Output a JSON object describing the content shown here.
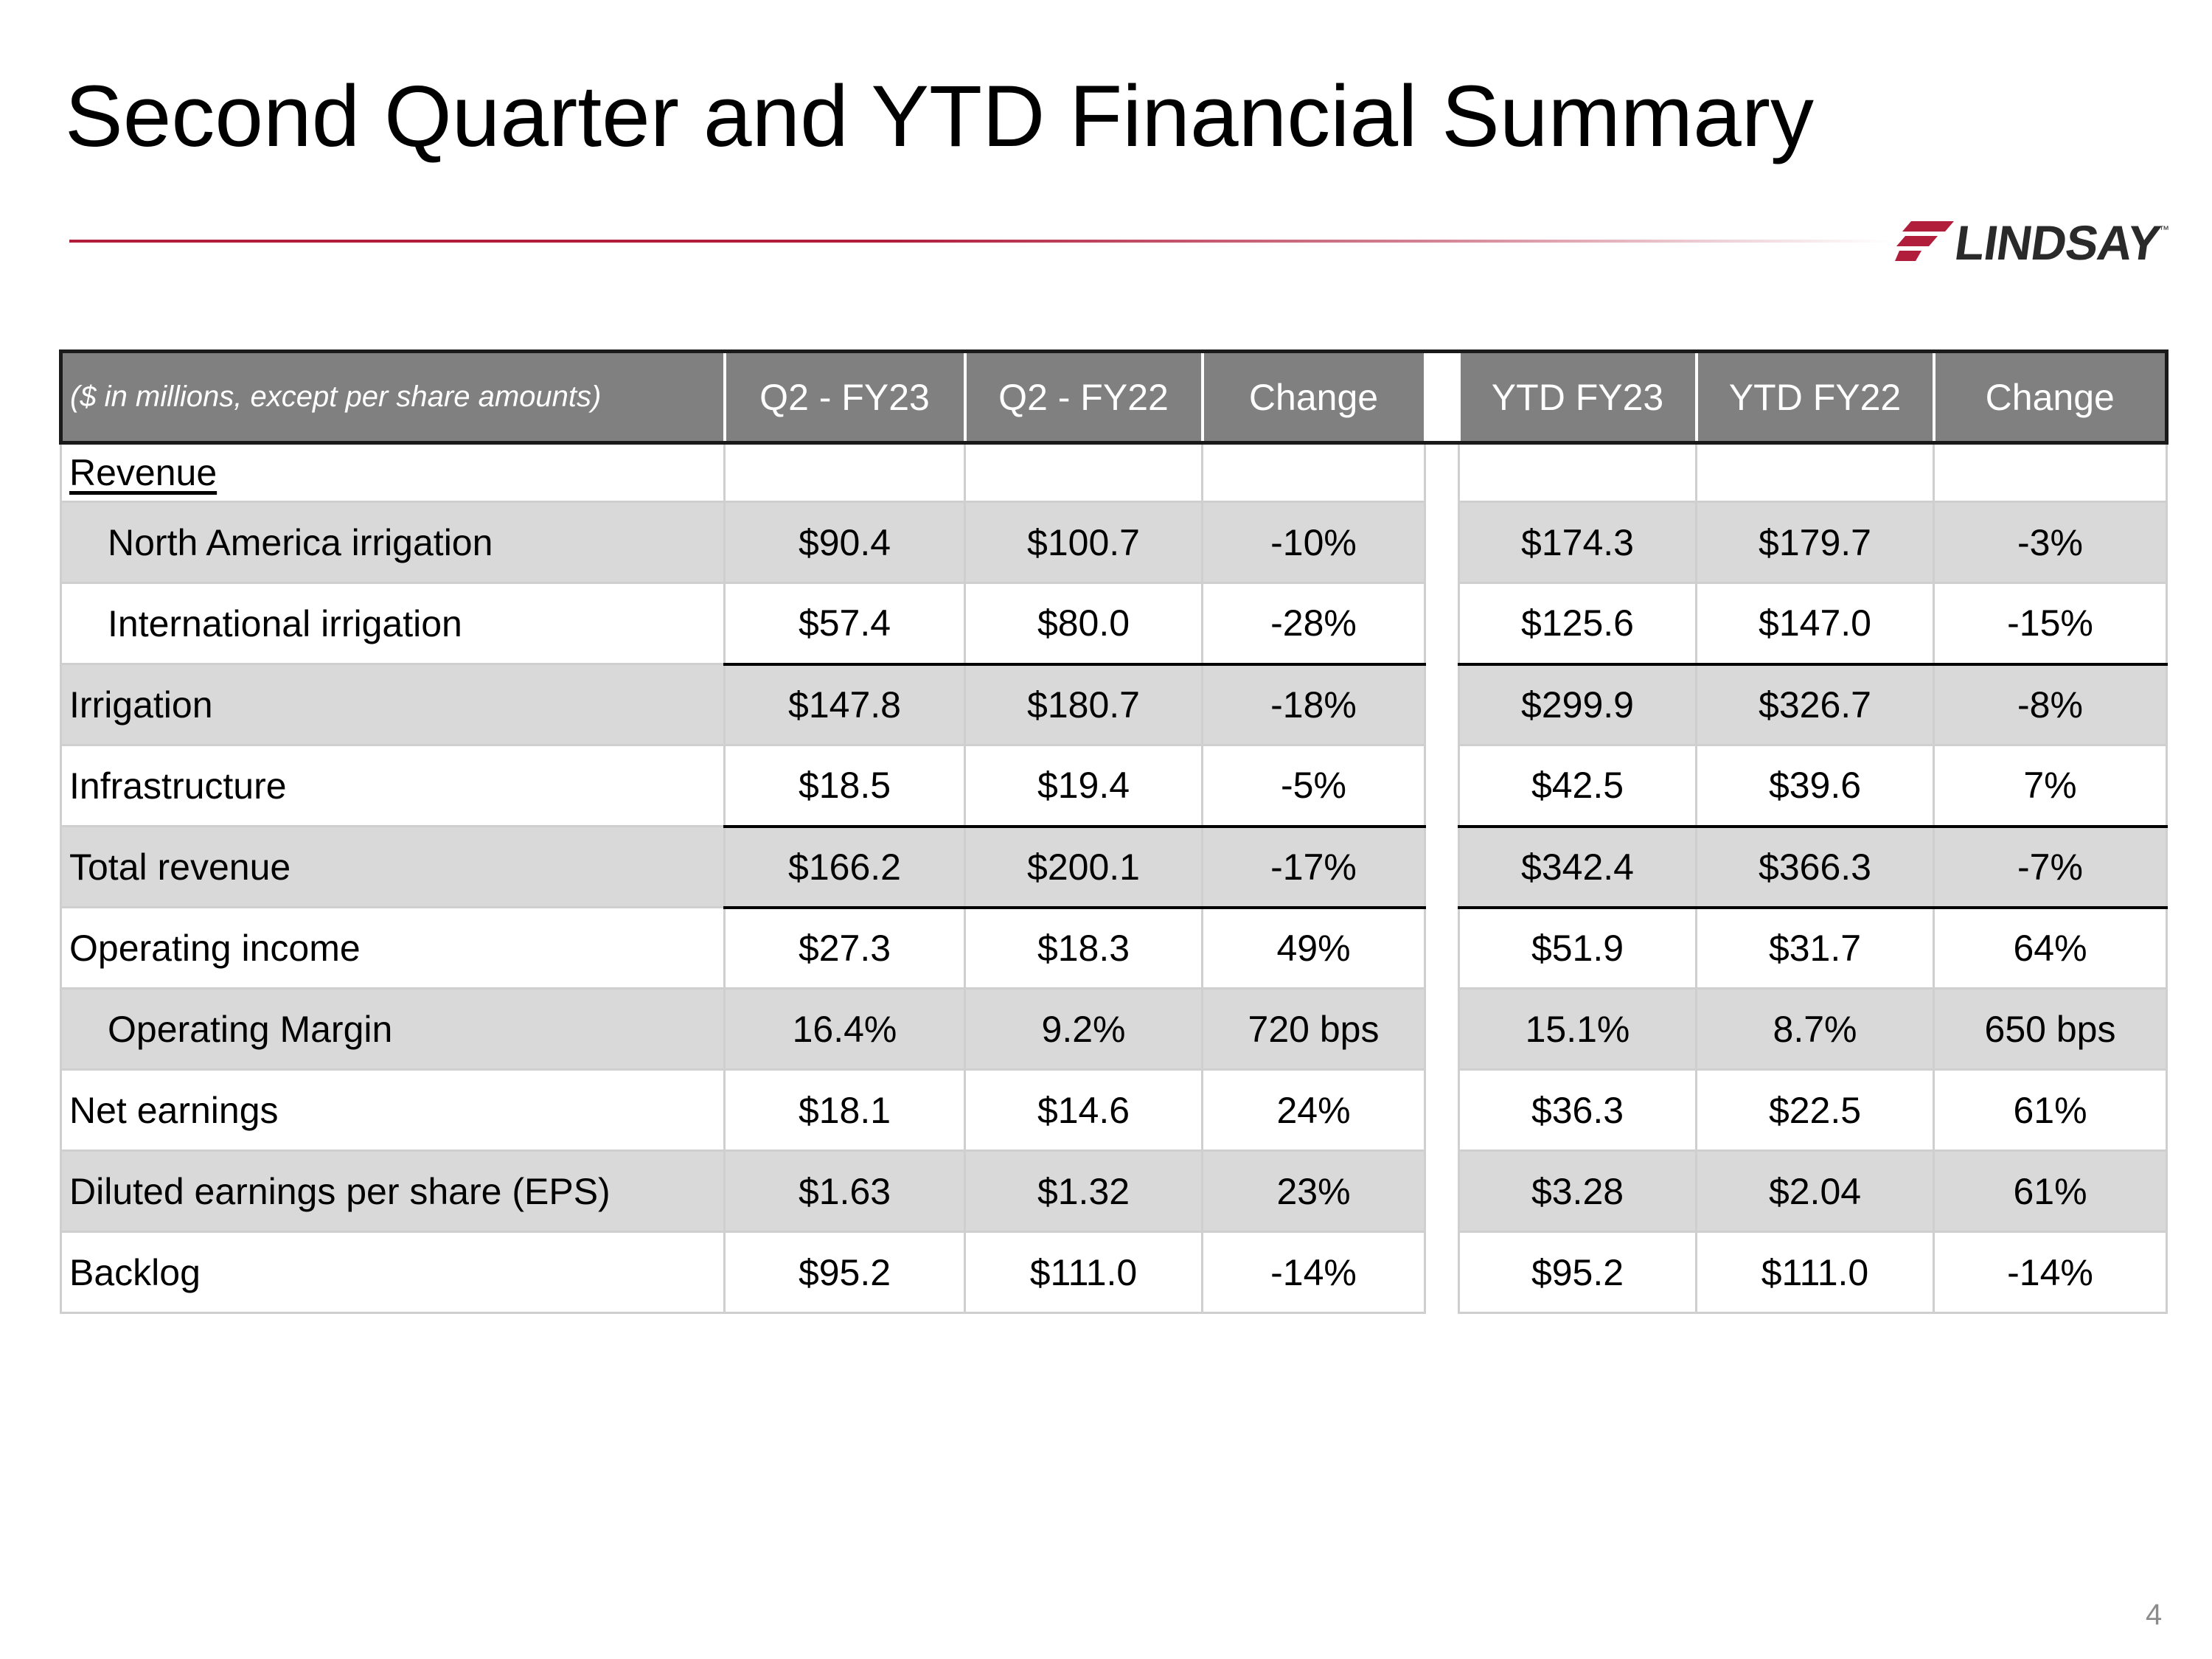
{
  "slide": {
    "title": "Second Quarter and YTD Financial Summary",
    "page_number": "4",
    "accent_color": "#b01e3c"
  },
  "logo": {
    "text": "LINDSAY",
    "trademark": "™",
    "icon": "lindsay-stripes-icon"
  },
  "table": {
    "units_note": "($ in millions, except per share amounts)",
    "columns": [
      "Q2 - FY23",
      "Q2 - FY22",
      "Change",
      "YTD FY23",
      "YTD FY22",
      "Change"
    ],
    "section_label": "Revenue",
    "rows": [
      {
        "label": "North America irrigation",
        "values": [
          "$90.4",
          "$100.7",
          "-10%",
          "$174.3",
          "$179.7",
          "-3%"
        ]
      },
      {
        "label": "International irrigation",
        "values": [
          "$57.4",
          "$80.0",
          "-28%",
          "$125.6",
          "$147.0",
          "-15%"
        ]
      },
      {
        "label": "Irrigation",
        "values": [
          "$147.8",
          "$180.7",
          "-18%",
          "$299.9",
          "$326.7",
          "-8%"
        ]
      },
      {
        "label": "Infrastructure",
        "values": [
          "$18.5",
          "$19.4",
          "-5%",
          "$42.5",
          "$39.6",
          "7%"
        ]
      },
      {
        "label": "Total revenue",
        "values": [
          "$166.2",
          "$200.1",
          "-17%",
          "$342.4",
          "$366.3",
          "-7%"
        ]
      },
      {
        "label": "Operating income",
        "values": [
          "$27.3",
          "$18.3",
          "49%",
          "$51.9",
          "$31.7",
          "64%"
        ]
      },
      {
        "label": "Operating Margin",
        "values": [
          "16.4%",
          "9.2%",
          "720 bps",
          "15.1%",
          "8.7%",
          "650 bps"
        ]
      },
      {
        "label": "Net earnings",
        "values": [
          "$18.1",
          "$14.6",
          "24%",
          "$36.3",
          "$22.5",
          "61%"
        ]
      },
      {
        "label": "Diluted earnings per share (EPS)",
        "values": [
          "$1.63",
          "$1.32",
          "23%",
          "$3.28",
          "$2.04",
          "61%"
        ]
      },
      {
        "label": "Backlog",
        "values": [
          "$95.2",
          "$111.0",
          "-14%",
          "$95.2",
          "$111.0",
          "-14%"
        ]
      }
    ]
  }
}
